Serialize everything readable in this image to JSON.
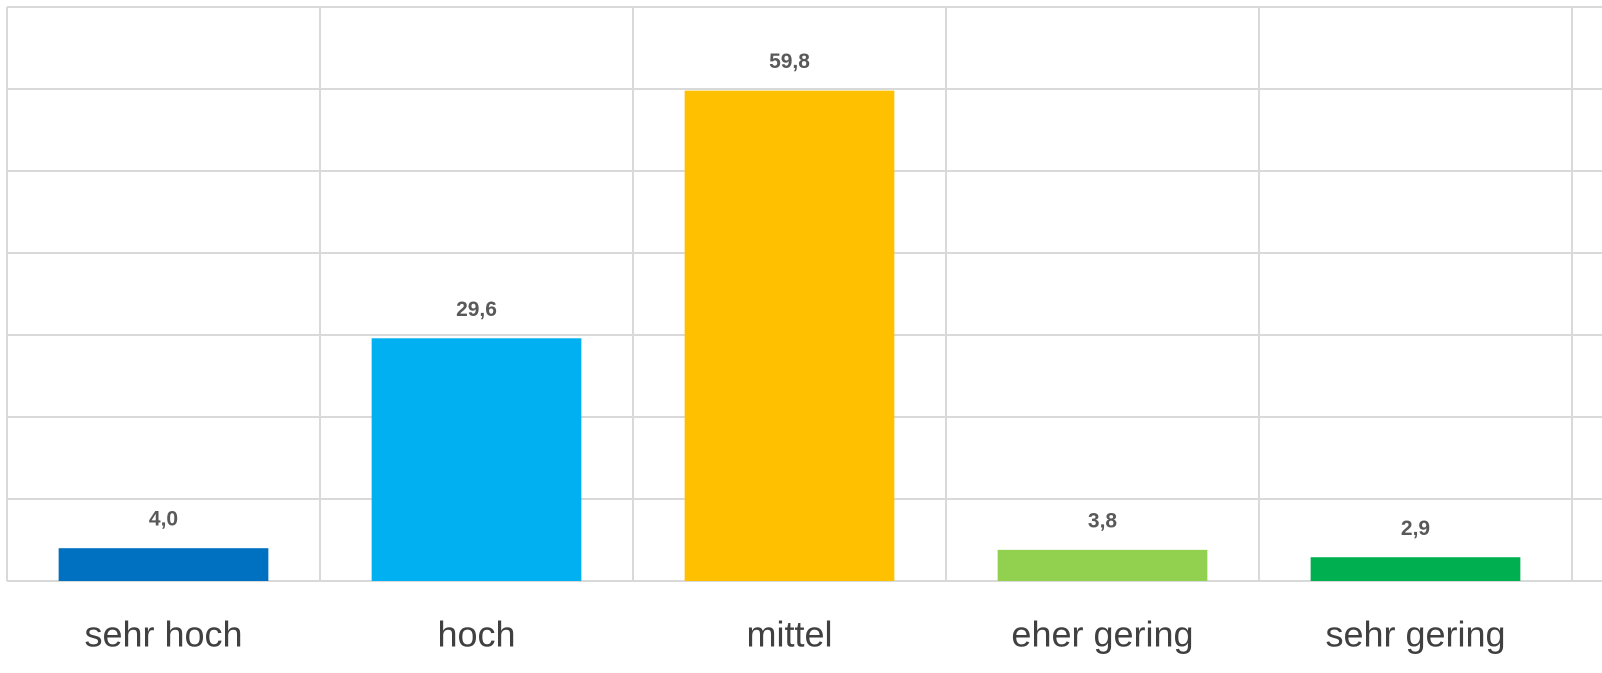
{
  "chart_data": {
    "type": "bar",
    "categories": [
      "sehr hoch",
      "hoch",
      "mittel",
      "eher gering",
      "sehr gering"
    ],
    "values": [
      4.0,
      29.6,
      59.8,
      3.8,
      2.9
    ],
    "value_labels": [
      "4,0",
      "29,6",
      "59,8",
      "3,8",
      "2,9"
    ],
    "colors": [
      "#0070c0",
      "#00b0f0",
      "#ffc000",
      "#92d050",
      "#00b050"
    ],
    "ylim": [
      0,
      70
    ],
    "yticks": [
      0,
      10,
      20,
      30,
      40,
      50,
      60,
      70
    ],
    "grid": true
  }
}
